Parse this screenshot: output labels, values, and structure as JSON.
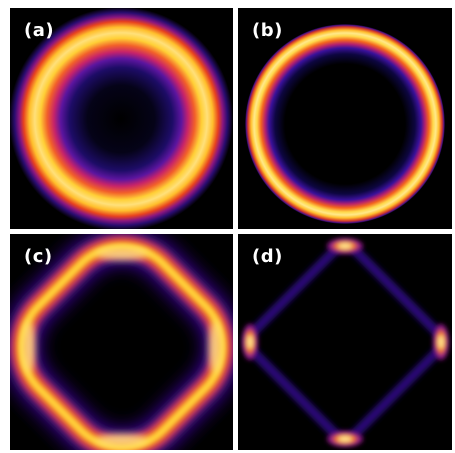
{
  "panels": [
    {
      "id": "a",
      "label": "(a)",
      "pattern": "broad-ring"
    },
    {
      "id": "b",
      "label": "(b)",
      "pattern": "thin-ring"
    },
    {
      "id": "c",
      "label": "(c)",
      "pattern": "rounded-square-ring"
    },
    {
      "id": "d",
      "label": "(d)",
      "pattern": "diamond-with-corner-lobes"
    }
  ],
  "colormap": {
    "name": "hot-inferno",
    "stops": [
      "#000000",
      "#1a0a5e",
      "#5a12a8",
      "#c0246a",
      "#f0551c",
      "#ffd21e",
      "#fff8b0"
    ]
  }
}
